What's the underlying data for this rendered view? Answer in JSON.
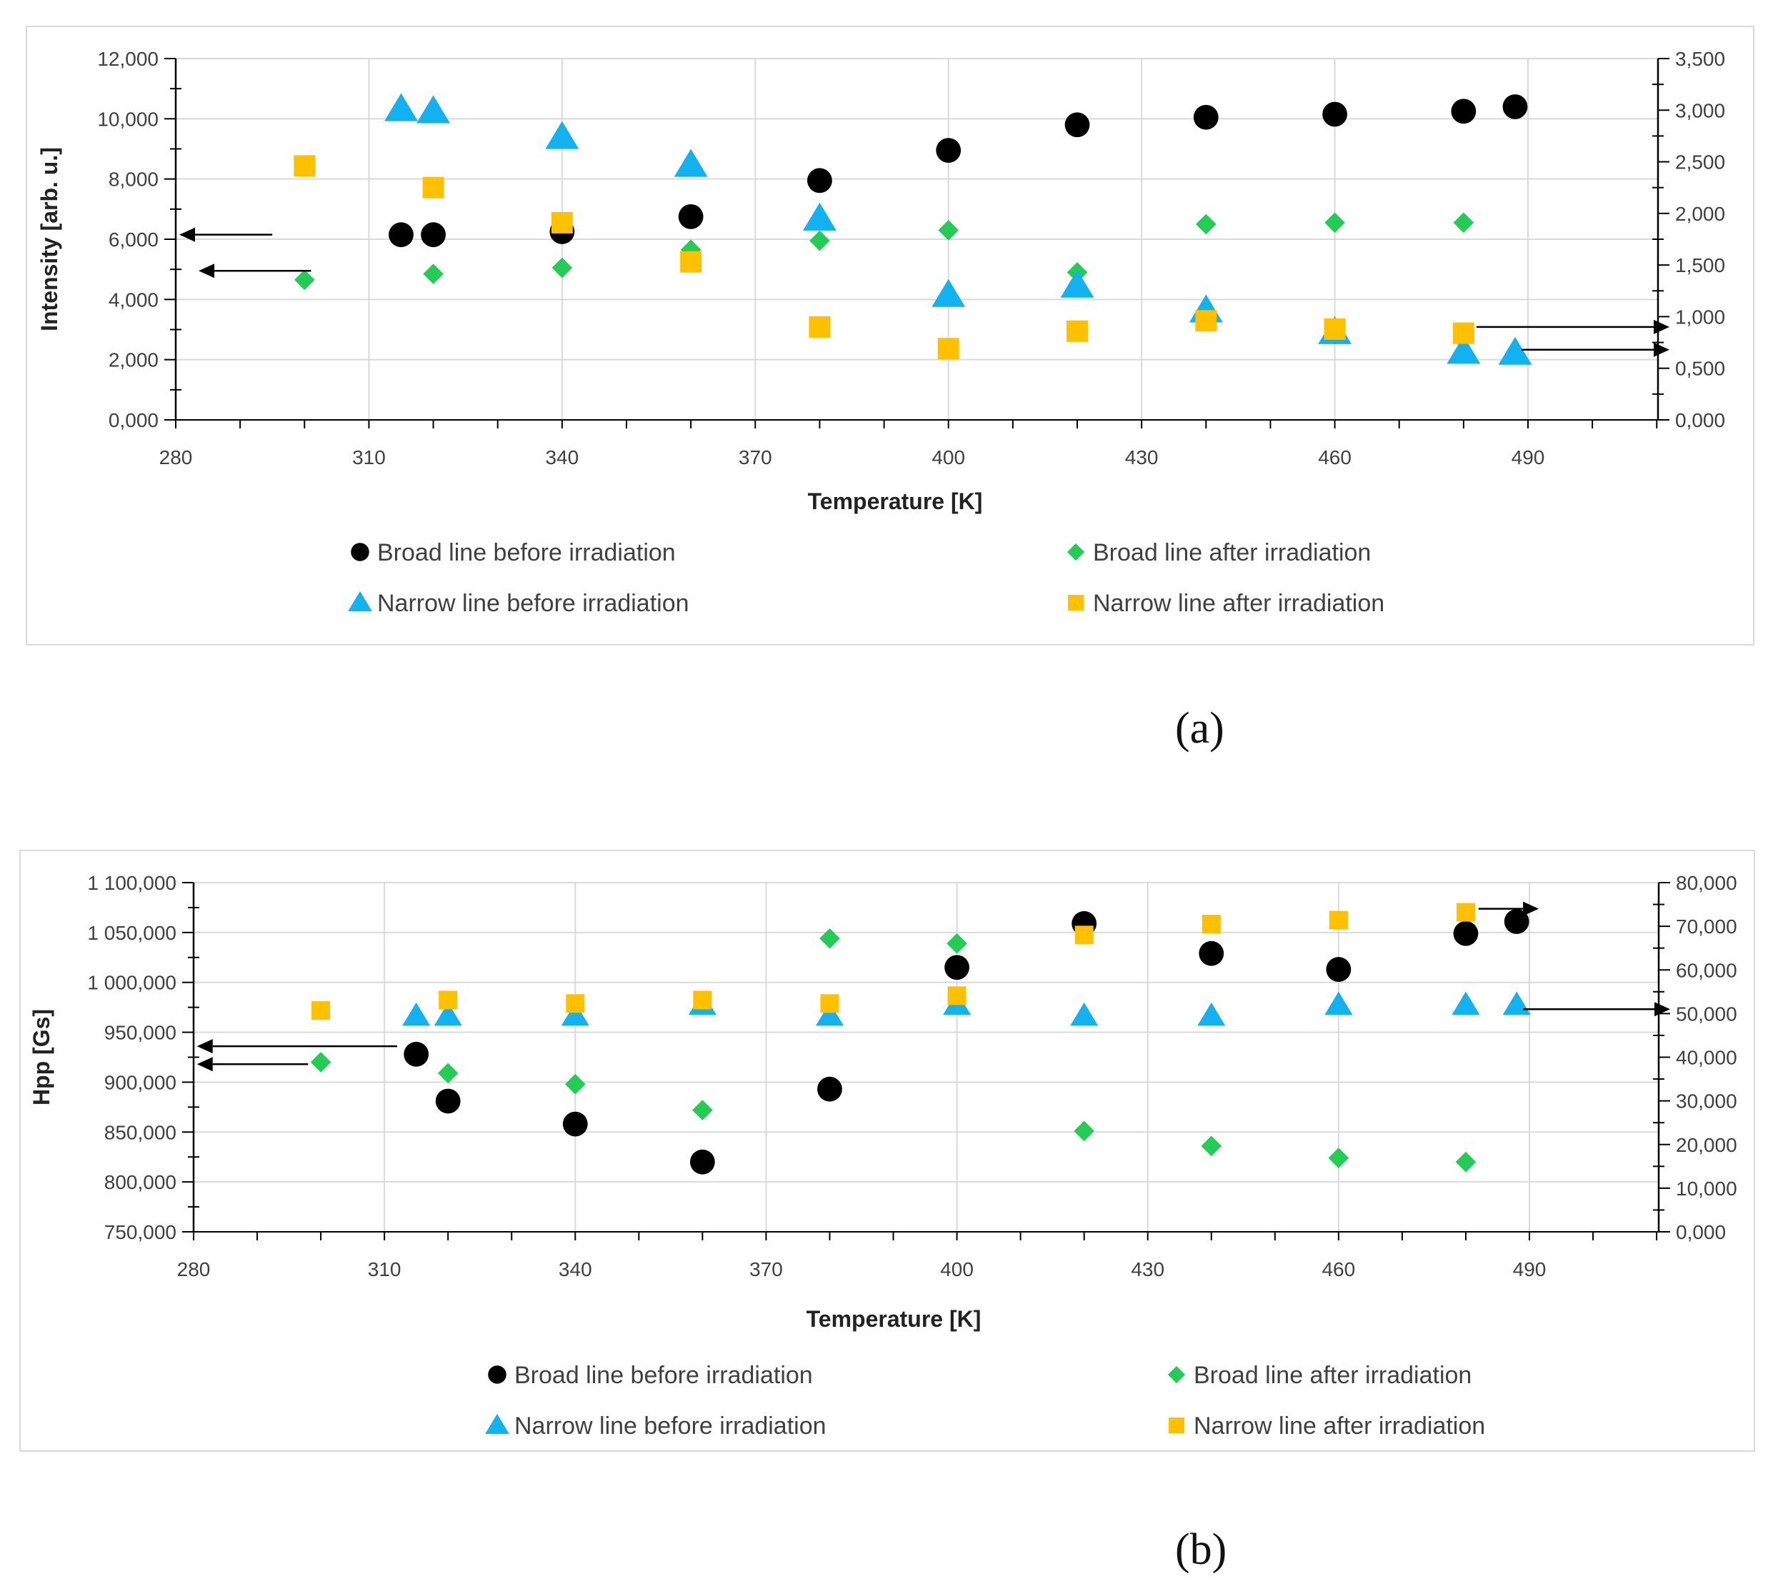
{
  "panel_labels": {
    "a": "(a)",
    "b": "(b)"
  },
  "chart_data": [
    {
      "id": "a",
      "type": "scatter",
      "xlabel": "Temperature [K]",
      "ylabel": "Intensity [arb. u.]",
      "xlim": [
        280,
        490
      ],
      "xticks": [
        280,
        310,
        340,
        370,
        400,
        430,
        460,
        490
      ],
      "ylim_left": [
        0,
        12000
      ],
      "yticks_left": [
        "0,000",
        "2,000",
        "4,000",
        "6,000",
        "8,000",
        "10,000",
        "12,000"
      ],
      "ylim_right": [
        0,
        3500
      ],
      "yticks_right": [
        "0,000",
        "0,500",
        "1,000",
        "1,500",
        "2,000",
        "2,500",
        "3,000",
        "3,500"
      ],
      "grid": true,
      "legend_position": "bottom",
      "series": [
        {
          "name": "Broad line before irradiation",
          "axis": "left",
          "marker": "circle",
          "color": "#000000",
          "x": [
            315,
            320,
            340,
            360,
            380,
            400,
            420,
            440,
            460,
            480,
            488
          ],
          "y": [
            6150,
            6150,
            6250,
            6750,
            7950,
            8950,
            9800,
            10050,
            10150,
            10250,
            10400
          ]
        },
        {
          "name": "Broad line after irradiation",
          "axis": "left",
          "marker": "diamond",
          "color": "#22cc55",
          "x": [
            300,
            320,
            340,
            360,
            380,
            400,
            420,
            440,
            460,
            480
          ],
          "y": [
            4650,
            4850,
            5050,
            5650,
            5950,
            6300,
            4900,
            6500,
            6550,
            6550
          ]
        },
        {
          "name": "Narrow line before irradiation",
          "axis": "right",
          "marker": "triangle",
          "color": "#12b2f0",
          "x": [
            315,
            320,
            340,
            360,
            380,
            400,
            420,
            440,
            460,
            480,
            488
          ],
          "y": [
            3010,
            2990,
            2740,
            2470,
            1950,
            1210,
            1300,
            1060,
            850,
            660,
            650
          ]
        },
        {
          "name": "Narrow line after irradiation",
          "axis": "right",
          "marker": "square",
          "color": "#ffc000",
          "x": [
            300,
            320,
            340,
            360,
            380,
            400,
            420,
            440,
            460,
            480
          ],
          "y": [
            2460,
            2250,
            1910,
            1530,
            900,
            690,
            860,
            960,
            880,
            840
          ]
        }
      ],
      "arrows": [
        {
          "direction": "left",
          "points_to": "left",
          "x_from": 295,
          "x_to": 283,
          "y_left": 6150
        },
        {
          "direction": "left",
          "points_to": "left",
          "x_from": 301,
          "x_to": 286,
          "y_left": 4950
        },
        {
          "direction": "right",
          "points_to": "right",
          "x_from": 482,
          "x_to": 490,
          "y_right": 900
        },
        {
          "direction": "right",
          "points_to": "right",
          "x_from": 489,
          "x_to": 490,
          "y_right": 680
        }
      ]
    },
    {
      "id": "b",
      "type": "scatter",
      "xlabel": "Temperature [K]",
      "ylabel": "Hpp [Gs]",
      "xlim": [
        280,
        490
      ],
      "xticks": [
        280,
        310,
        340,
        370,
        400,
        430,
        460,
        490
      ],
      "ylim_left": [
        750000,
        1100000
      ],
      "yticks_left": [
        "750,000",
        "800,000",
        "850,000",
        "900,000",
        "950,000",
        "1 000,000",
        "1 050,000",
        "1 100,000"
      ],
      "ylim_right": [
        0,
        80000
      ],
      "yticks_right": [
        "0,000",
        "10,000",
        "20,000",
        "30,000",
        "40,000",
        "50,000",
        "60,000",
        "70,000",
        "80,000"
      ],
      "grid": true,
      "legend_position": "bottom",
      "series": [
        {
          "name": "Broad line before irradiation",
          "axis": "left",
          "marker": "circle",
          "color": "#000000",
          "x": [
            315,
            320,
            340,
            360,
            380,
            400,
            420,
            440,
            460,
            480,
            488
          ],
          "y": [
            928000,
            881000,
            858000,
            820000,
            893000,
            1015000,
            1059000,
            1029000,
            1013000,
            1049000,
            1061000
          ]
        },
        {
          "name": "Broad line after irradiation",
          "axis": "left",
          "marker": "diamond",
          "color": "#22cc55",
          "x": [
            300,
            320,
            340,
            360,
            380,
            400,
            420,
            440,
            460,
            480
          ],
          "y": [
            920000,
            909000,
            898000,
            872000,
            1044000,
            1039000,
            851000,
            836000,
            824000,
            820000
          ]
        },
        {
          "name": "Narrow line before irradiation",
          "axis": "right",
          "marker": "triangle",
          "color": "#12b2f0",
          "x": [
            315,
            320,
            340,
            360,
            380,
            400,
            420,
            440,
            460,
            480,
            488
          ],
          "y": [
            49500,
            49500,
            49500,
            52000,
            49500,
            52000,
            49500,
            49500,
            52000,
            52000,
            52000
          ]
        },
        {
          "name": "Narrow line after irradiation",
          "axis": "right",
          "marker": "square",
          "color": "#ffc000",
          "x": [
            300,
            320,
            340,
            360,
            380,
            400,
            420,
            440,
            460,
            480
          ],
          "y": [
            50700,
            53100,
            52300,
            53100,
            52300,
            54100,
            68000,
            70500,
            71400,
            73200
          ]
        }
      ],
      "arrows": [
        {
          "direction": "left",
          "points_to": "left",
          "x_from": 312,
          "x_to": 283,
          "y_left": 936000
        },
        {
          "direction": "left",
          "points_to": "left",
          "x_from": 298,
          "x_to": 283,
          "y_left": 918000
        },
        {
          "direction": "right",
          "points_to": "right",
          "x_from": 482,
          "x_to": 489,
          "y_right": 74000
        },
        {
          "direction": "right",
          "points_to": "right",
          "x_from": 489,
          "x_to": 490,
          "y_right": 51000
        }
      ]
    }
  ]
}
